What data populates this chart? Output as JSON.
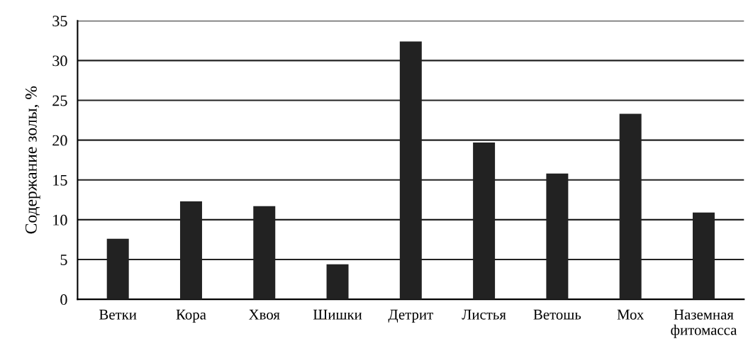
{
  "chart_data": {
    "type": "bar",
    "ylabel": "Содержание золы, %",
    "categories": [
      "Ветки",
      "Кора",
      "Хвоя",
      "Шишки",
      "Детрит",
      "Листья",
      "Ветошь",
      "Мох",
      "Наземная\nфитомасса"
    ],
    "values": [
      7.6,
      12.3,
      11.7,
      4.4,
      32.4,
      19.7,
      15.8,
      23.3,
      10.9
    ],
    "color": "#222222",
    "ylim": [
      0,
      35
    ],
    "yticks": [
      0,
      5,
      10,
      15,
      20,
      25,
      30,
      35
    ],
    "grid": "y"
  }
}
